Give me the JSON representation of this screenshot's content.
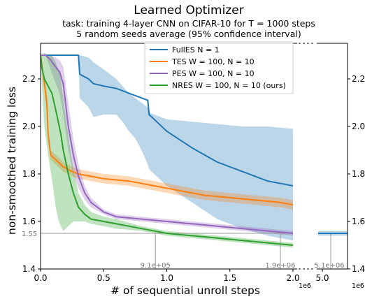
{
  "chart_data": {
    "type": "line",
    "title": "Learned Optimizer",
    "subtitle_lines": [
      "task: training 4-layer CNN on CIFAR-10 for T = 1000 steps",
      "5 random seeds average (95% confidence interval)"
    ],
    "xlabel": "# of sequential unroll steps",
    "ylabel": "non-smoothed training loss",
    "x_multiplier_label": "1e6",
    "xlim_main": [
      0.0,
      2.0
    ],
    "xlim_inset": [
      4.95,
      5.3
    ],
    "ylim": [
      1.4,
      2.35
    ],
    "x_ticks_main": [
      "0.0",
      "0.5",
      "1.0",
      "1.5",
      "2.0"
    ],
    "x_ticks_inset": [
      "5.0"
    ],
    "y_ticks": [
      "1.4",
      "1.6",
      "1.8",
      "2.0",
      "2.2"
    ],
    "reference_line": {
      "y": 1.55,
      "label": "1.55"
    },
    "markers": [
      {
        "x": 0.91,
        "label": "9.1e+05"
      },
      {
        "x": 1.9,
        "label": "1.9e+06"
      },
      {
        "x": 5.1,
        "label": "5.1e+06"
      }
    ],
    "legend_position": "top-right",
    "series": [
      {
        "name": "FullES N = 1",
        "color": "#1f77b4",
        "x": [
          0.0,
          0.3,
          0.31,
          0.38,
          0.42,
          0.5,
          0.6,
          0.65,
          0.7,
          0.75,
          0.8,
          0.85,
          0.86,
          0.9,
          1.0,
          1.2,
          1.4,
          1.6,
          1.8,
          2.0
        ],
        "y": [
          2.3,
          2.3,
          2.22,
          2.2,
          2.18,
          2.17,
          2.16,
          2.15,
          2.14,
          2.13,
          2.12,
          2.11,
          2.05,
          2.03,
          1.98,
          1.91,
          1.85,
          1.81,
          1.77,
          1.75
        ],
        "band_upper": [
          2.3,
          2.3,
          2.3,
          2.29,
          2.27,
          2.24,
          2.2,
          2.17,
          2.14,
          2.12,
          2.1,
          2.08,
          2.06,
          2.05,
          2.03,
          2.02,
          2.01,
          2.0,
          2.0,
          1.99
        ],
        "band_lower": [
          2.3,
          2.3,
          2.12,
          2.08,
          2.04,
          2.05,
          2.05,
          2.02,
          1.98,
          1.95,
          1.9,
          1.84,
          1.82,
          1.8,
          1.75,
          1.68,
          1.61,
          1.57,
          1.54,
          1.52
        ]
      },
      {
        "name": "TES W = 100, N = 10",
        "color": "#ff7f0e",
        "x": [
          0.0,
          0.05,
          0.06,
          0.08,
          0.12,
          0.18,
          0.25,
          0.3,
          0.4,
          0.5,
          0.7,
          0.9,
          1.1,
          1.3,
          1.5,
          1.7,
          1.9,
          2.0
        ],
        "y": [
          2.3,
          2.1,
          1.97,
          1.88,
          1.86,
          1.83,
          1.81,
          1.8,
          1.79,
          1.78,
          1.77,
          1.75,
          1.73,
          1.71,
          1.7,
          1.69,
          1.68,
          1.67
        ],
        "band_upper": [
          2.3,
          2.14,
          2.0,
          1.9,
          1.88,
          1.85,
          1.83,
          1.82,
          1.81,
          1.8,
          1.79,
          1.77,
          1.75,
          1.73,
          1.72,
          1.71,
          1.7,
          1.69
        ],
        "band_lower": [
          2.3,
          2.06,
          1.94,
          1.86,
          1.84,
          1.81,
          1.79,
          1.78,
          1.77,
          1.76,
          1.75,
          1.73,
          1.71,
          1.69,
          1.68,
          1.67,
          1.66,
          1.65
        ]
      },
      {
        "name": "PES W = 100, N = 10",
        "color": "#9467bd",
        "x": [
          0.0,
          0.04,
          0.08,
          0.12,
          0.15,
          0.18,
          0.22,
          0.26,
          0.3,
          0.35,
          0.4,
          0.5,
          0.6,
          0.8,
          1.0,
          1.2,
          1.4,
          1.6,
          1.8,
          2.0
        ],
        "y": [
          2.3,
          2.3,
          2.28,
          2.25,
          2.23,
          2.18,
          2.0,
          1.88,
          1.79,
          1.72,
          1.68,
          1.64,
          1.62,
          1.61,
          1.6,
          1.59,
          1.58,
          1.57,
          1.56,
          1.55
        ],
        "band_upper": [
          2.3,
          2.3,
          2.3,
          2.29,
          2.28,
          2.25,
          2.1,
          1.95,
          1.84,
          1.75,
          1.7,
          1.65,
          1.63,
          1.62,
          1.61,
          1.6,
          1.59,
          1.58,
          1.57,
          1.56
        ],
        "band_lower": [
          2.3,
          2.3,
          2.24,
          2.18,
          2.14,
          2.05,
          1.9,
          1.8,
          1.74,
          1.69,
          1.66,
          1.63,
          1.61,
          1.6,
          1.59,
          1.58,
          1.57,
          1.56,
          1.55,
          1.54
        ]
      },
      {
        "name": "NRES W = 100, N = 10 (ours)",
        "color": "#2ca02c",
        "x": [
          0.0,
          0.01,
          0.03,
          0.06,
          0.09,
          0.12,
          0.14,
          0.16,
          0.18,
          0.22,
          0.26,
          0.3,
          0.35,
          0.4,
          0.5,
          0.6,
          0.8,
          1.0,
          1.2,
          1.4,
          1.6,
          1.8,
          2.0
        ],
        "y": [
          2.3,
          2.25,
          2.2,
          2.17,
          2.14,
          2.07,
          2.02,
          1.97,
          1.9,
          1.8,
          1.72,
          1.66,
          1.63,
          1.61,
          1.6,
          1.59,
          1.57,
          1.55,
          1.54,
          1.53,
          1.52,
          1.51,
          1.5
        ],
        "band_upper": [
          2.3,
          2.3,
          2.31,
          2.3,
          2.3,
          2.27,
          2.24,
          2.2,
          2.12,
          1.96,
          1.82,
          1.72,
          1.67,
          1.64,
          1.62,
          1.61,
          1.58,
          1.56,
          1.55,
          1.54,
          1.53,
          1.52,
          1.51
        ],
        "band_lower": [
          2.3,
          2.18,
          2.0,
          1.88,
          1.78,
          1.66,
          1.61,
          1.58,
          1.56,
          1.58,
          1.6,
          1.6,
          1.6,
          1.59,
          1.58,
          1.57,
          1.56,
          1.54,
          1.53,
          1.52,
          1.51,
          1.5,
          1.49
        ]
      }
    ],
    "inset_series": [
      {
        "name": "FullES N = 1",
        "color": "#1f77b4",
        "x": [
          4.95,
          5.05,
          5.15,
          5.25,
          5.3
        ],
        "y": [
          1.55,
          1.55,
          1.55,
          1.55,
          1.55
        ],
        "band_upper": [
          1.56,
          1.56,
          1.56,
          1.56,
          1.56
        ],
        "band_lower": [
          1.54,
          1.54,
          1.54,
          1.54,
          1.54
        ]
      }
    ]
  }
}
